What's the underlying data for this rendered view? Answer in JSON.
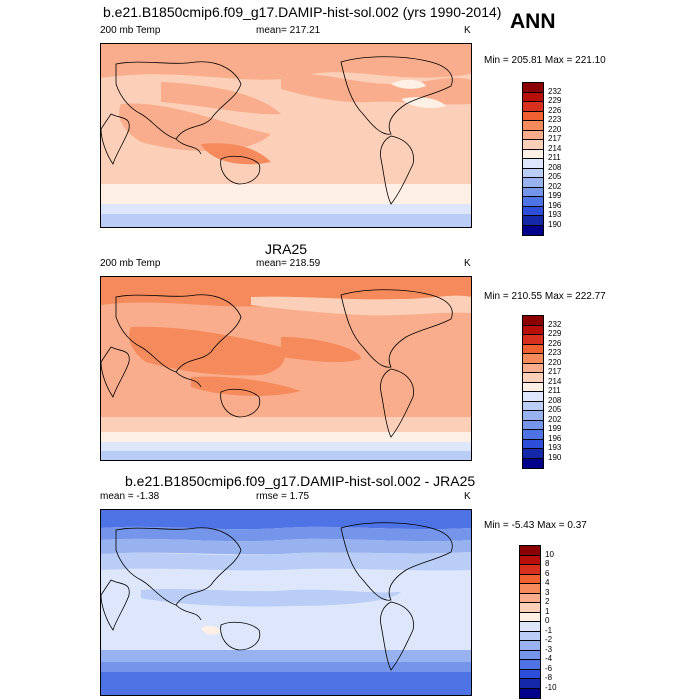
{
  "season": "ANN",
  "panels": [
    {
      "title": "b.e21.B1850cmip6.f09_g17.DAMIP-hist-sol.002 (yrs 1990-2014)",
      "left_label": "200 mb Temp",
      "center_label": "mean= 217.21",
      "units": "K",
      "minmax": "Min = 205.81 Max = 221.10",
      "colorbar": {
        "labels": [
          "232",
          "229",
          "226",
          "223",
          "220",
          "217",
          "214",
          "211",
          "208",
          "205",
          "202",
          "199",
          "196",
          "193",
          "190"
        ],
        "colors": [
          "#8b0000",
          "#b80f0a",
          "#d7301f",
          "#f06030",
          "#f58a5c",
          "#f9ad8c",
          "#fcd0b8",
          "#fff0e6",
          "#dde6fb",
          "#bacdf6",
          "#98b2ef",
          "#7595ea",
          "#4e73e5",
          "#2c4ed8",
          "#1528a8",
          "#00008b"
        ]
      }
    },
    {
      "title": "JRA25",
      "left_label": "200 mb Temp",
      "center_label": "mean= 218.59",
      "units": "K",
      "minmax": "Min = 210.55 Max = 222.77",
      "colorbar": {
        "labels": [
          "232",
          "229",
          "226",
          "223",
          "220",
          "217",
          "214",
          "211",
          "208",
          "205",
          "202",
          "199",
          "196",
          "193",
          "190"
        ],
        "colors": [
          "#8b0000",
          "#b80f0a",
          "#d7301f",
          "#f06030",
          "#f58a5c",
          "#f9ad8c",
          "#fcd0b8",
          "#fff0e6",
          "#dde6fb",
          "#bacdf6",
          "#98b2ef",
          "#7595ea",
          "#4e73e5",
          "#2c4ed8",
          "#1528a8",
          "#00008b"
        ]
      }
    },
    {
      "title": "b.e21.B1850cmip6.f09_g17.DAMIP-hist-sol.002 - JRA25",
      "left_label": "mean =  -1.38",
      "center_label": "rmse =   1.75",
      "units": "K",
      "minmax": "Min =  -5.43 Max =   0.37",
      "colorbar": {
        "labels": [
          "10",
          "8",
          "6",
          "4",
          "3",
          "2",
          "1",
          "0",
          "-1",
          "-2",
          "-3",
          "-4",
          "-6",
          "-8",
          "-10"
        ],
        "colors": [
          "#8b0000",
          "#b80f0a",
          "#d7301f",
          "#f06030",
          "#f58a5c",
          "#f9ad8c",
          "#fcd0b8",
          "#fff0e6",
          "#dde6fb",
          "#bacdf6",
          "#98b2ef",
          "#7595ea",
          "#4e73e5",
          "#2c4ed8",
          "#1528a8",
          "#00008b"
        ]
      }
    }
  ]
}
